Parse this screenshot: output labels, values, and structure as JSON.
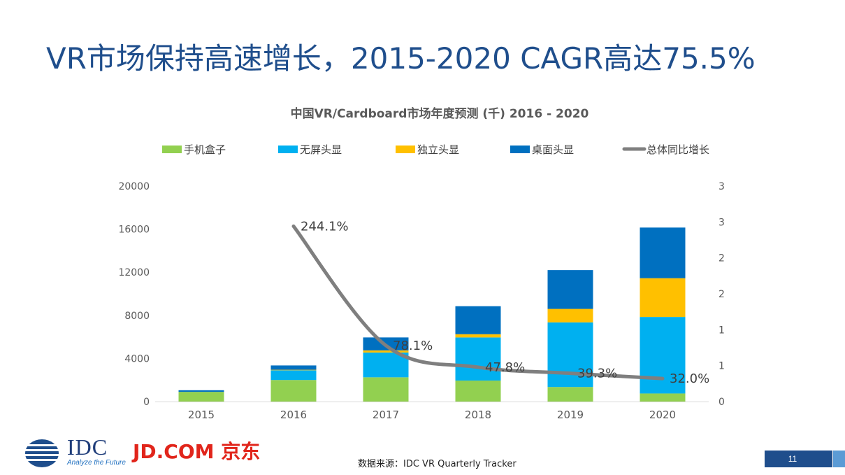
{
  "slide": {
    "title": "VR市场保持高速增长，2015-2020 CAGR高达75.5%",
    "source": "数据来源：IDC VR Quarterly Tracker",
    "page_number": "11",
    "logo_idc": "IDC",
    "logo_idc_tagline": "Analyze the Future",
    "logo_jd": "JD.COM 京东"
  },
  "chart_data": {
    "type": "bar",
    "stacked": true,
    "title": "中国VR/Cardboard市场年度预测 (千) 2016 - 2020",
    "categories": [
      "2015",
      "2016",
      "2017",
      "2018",
      "2019",
      "2020"
    ],
    "series": [
      {
        "name": "手机盒子",
        "color": "#92d050",
        "values": [
          900,
          2000,
          2250,
          1950,
          1350,
          750
        ]
      },
      {
        "name": "无屏头显",
        "color": "#00b0f0",
        "values": [
          0,
          900,
          2300,
          4000,
          6000,
          7100
        ]
      },
      {
        "name": "独立头显",
        "color": "#ffc000",
        "values": [
          0,
          50,
          200,
          300,
          1250,
          3600
        ]
      },
      {
        "name": "桌面头显",
        "color": "#0070c0",
        "values": [
          150,
          400,
          1200,
          2600,
          3600,
          4700
        ]
      }
    ],
    "line": {
      "name": "总体同比增长",
      "color": "#7f7f7f",
      "categories": [
        "2016",
        "2017",
        "2018",
        "2019",
        "2020"
      ],
      "values": [
        2.441,
        0.781,
        0.478,
        0.393,
        0.32
      ],
      "labels": [
        "244.1%",
        "78.1%",
        "47.8%",
        "39.3%",
        "32.0%"
      ]
    },
    "y_left": {
      "min": 0,
      "max": 20000,
      "ticks": [
        "0",
        "4000",
        "8000",
        "12000",
        "16000",
        "20000"
      ]
    },
    "y_right": {
      "min": 0,
      "max": 3,
      "ticks": [
        "0",
        "1",
        "1",
        "2",
        "2",
        "3",
        "3"
      ]
    },
    "legend_position": "top"
  }
}
